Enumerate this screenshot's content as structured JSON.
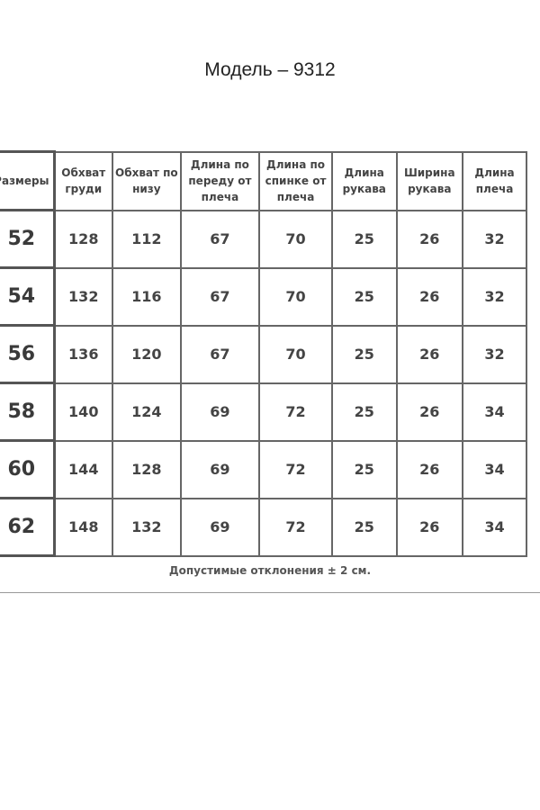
{
  "title": "Модель – 9312",
  "table": {
    "headers": [
      "Размеры",
      "Обхват груди",
      "Обхват по низу",
      "Длина по переду от плеча",
      "Длина по спинке от плеча",
      "Длина рукава",
      "Ширина рукава",
      "Длина плеча"
    ],
    "rows": [
      [
        "52",
        "128",
        "112",
        "67",
        "70",
        "25",
        "26",
        "32"
      ],
      [
        "54",
        "132",
        "116",
        "67",
        "70",
        "25",
        "26",
        "32"
      ],
      [
        "56",
        "136",
        "120",
        "67",
        "70",
        "25",
        "26",
        "32"
      ],
      [
        "58",
        "140",
        "124",
        "69",
        "72",
        "25",
        "26",
        "34"
      ],
      [
        "60",
        "144",
        "128",
        "69",
        "72",
        "25",
        "26",
        "34"
      ],
      [
        "62",
        "148",
        "132",
        "69",
        "72",
        "25",
        "26",
        "34"
      ]
    ]
  },
  "note": "Допустимые отклонения ± 2 см."
}
